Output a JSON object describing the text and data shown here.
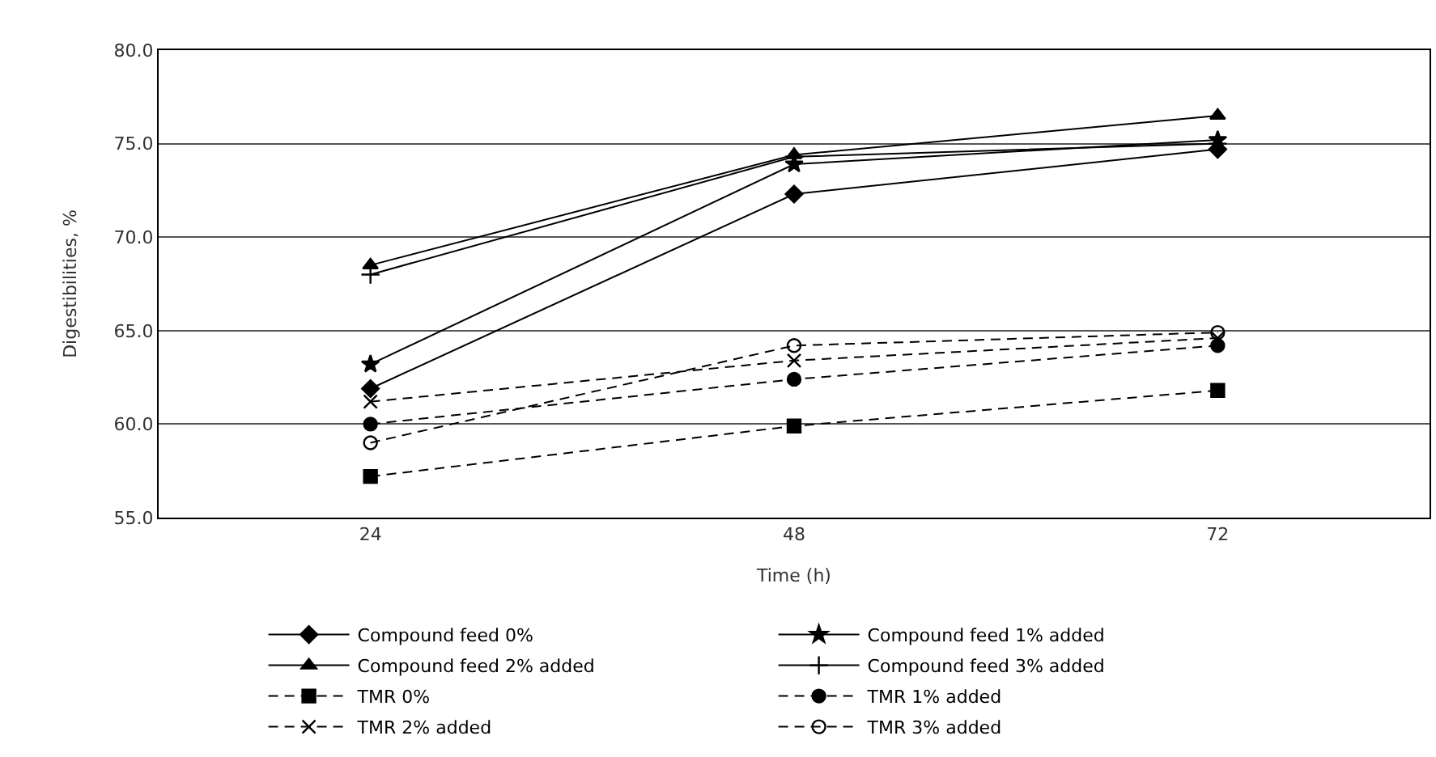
{
  "chart_data": {
    "type": "line",
    "xlabel": "Time (h)",
    "ylabel": "Digestibilities, %",
    "categories": [
      "24",
      "48",
      "72"
    ],
    "ylim": [
      55,
      80
    ],
    "yticks": [
      {
        "value": 55,
        "label": "55.0"
      },
      {
        "value": 60,
        "label": "60.0"
      },
      {
        "value": 65,
        "label": "65.0"
      },
      {
        "value": 70,
        "label": "70.0"
      },
      {
        "value": 75,
        "label": "75.0"
      },
      {
        "value": 80,
        "label": "80.0"
      }
    ],
    "grid": "y",
    "legend": "bottom",
    "series": [
      {
        "name": "Compound feed 0%",
        "color": "#000000",
        "marker": "diamond",
        "line_style": "solid",
        "values": [
          61.9,
          72.3,
          74.7
        ]
      },
      {
        "name": "Compound feed 1% added",
        "color": "#000000",
        "marker": "star",
        "line_style": "solid",
        "values": [
          63.2,
          73.9,
          75.2
        ]
      },
      {
        "name": "Compound feed 2% added",
        "color": "#000000",
        "marker": "triangle",
        "line_style": "solid",
        "values": [
          68.5,
          74.4,
          76.5
        ]
      },
      {
        "name": "Compound feed 3% added",
        "color": "#000000",
        "marker": "cross",
        "line_style": "solid",
        "values": [
          68.0,
          74.3,
          75.0
        ]
      },
      {
        "name": "TMR 0%",
        "color": "#000000",
        "marker": "square",
        "line_style": "dashed",
        "values": [
          57.2,
          59.9,
          61.8
        ]
      },
      {
        "name": "TMR 1% added",
        "color": "#000000",
        "marker": "circle",
        "line_style": "dashed",
        "values": [
          60.0,
          62.4,
          64.2
        ]
      },
      {
        "name": "TMR 2% added",
        "color": "#000000",
        "marker": "x",
        "line_style": "dashed",
        "values": [
          61.2,
          63.4,
          64.6
        ]
      },
      {
        "name": "TMR 3% added",
        "color": "#000000",
        "marker": "circle-open",
        "line_style": "dashed",
        "values": [
          59.0,
          64.2,
          64.9
        ]
      }
    ]
  }
}
